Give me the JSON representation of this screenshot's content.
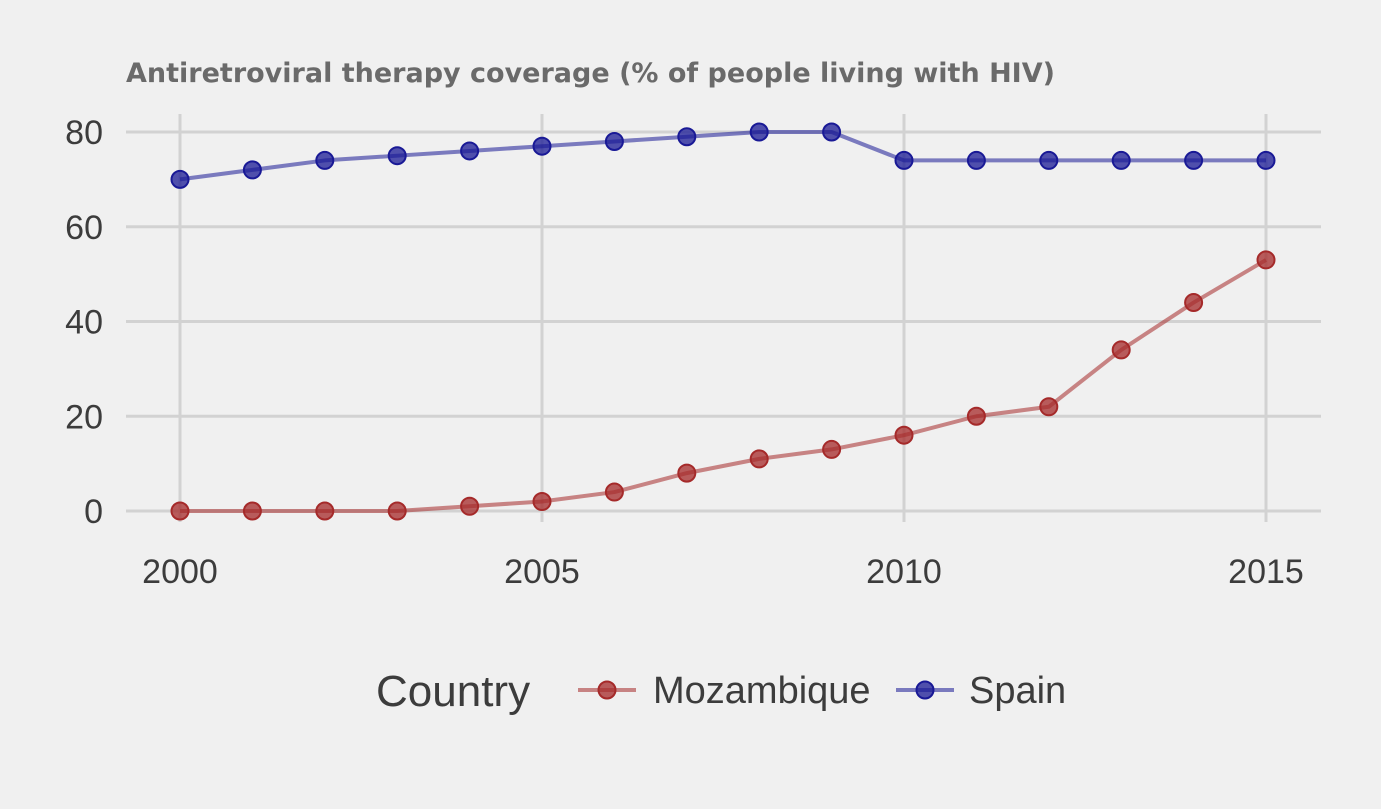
{
  "chart_data": {
    "type": "line",
    "title": "Antiretroviral therapy coverage (% of people living with HIV)",
    "xlabel": "",
    "ylabel": "",
    "x": [
      2000,
      2001,
      2002,
      2003,
      2004,
      2005,
      2006,
      2007,
      2008,
      2009,
      2010,
      2011,
      2012,
      2013,
      2014,
      2015
    ],
    "xlim": [
      2000,
      2015
    ],
    "ylim": [
      0,
      80
    ],
    "xticks": [
      "2000",
      "2005",
      "2010",
      "2015"
    ],
    "yticks": [
      "0",
      "20",
      "40",
      "60",
      "80"
    ],
    "grid": true,
    "legend": {
      "title": "Country",
      "position": "bottom"
    },
    "series": [
      {
        "name": "Mozambique",
        "color": "#a52a2a",
        "values": [
          0,
          0,
          0,
          0,
          1,
          2,
          4,
          8,
          11,
          13,
          16,
          20,
          22,
          34,
          44,
          53
        ]
      },
      {
        "name": "Spain",
        "color": "#191996",
        "values": [
          70,
          72,
          74,
          75,
          76,
          77,
          78,
          79,
          80,
          80,
          74,
          74,
          74,
          74,
          74,
          74
        ]
      }
    ]
  }
}
